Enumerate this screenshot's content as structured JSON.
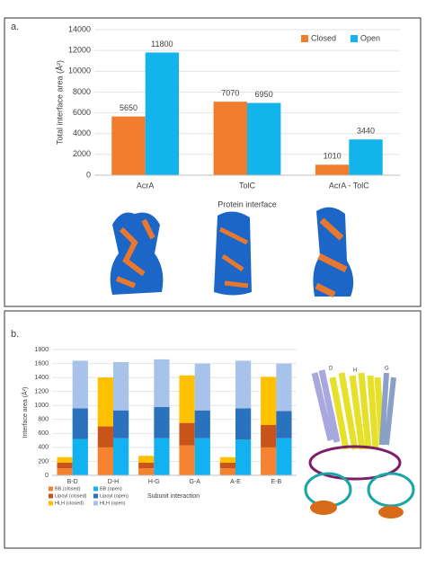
{
  "chart_data": [
    {
      "type": "bar",
      "panel_label": "a.",
      "y_label": "Total interface area (Å²)",
      "x_label": "Protein interface",
      "categories": [
        "AcrA",
        "TolC",
        "AcrA - TolC"
      ],
      "series": [
        {
          "name": "Closed",
          "color": "#f07d2e",
          "values": [
            5650,
            7070,
            1010
          ]
        },
        {
          "name": "Open",
          "color": "#13b4ec",
          "values": [
            11800,
            6950,
            3440
          ]
        }
      ],
      "ylim": [
        0,
        14000
      ],
      "yticks": [
        0,
        2000,
        4000,
        6000,
        8000,
        10000,
        12000,
        14000
      ],
      "legend": "top-right"
    },
    {
      "type": "stacked_bar",
      "panel_label": "b.",
      "y_label": "Interface area (Å²)",
      "x_label": "Subunit interaction",
      "categories": [
        "B-D",
        "D-H",
        "H-G",
        "G-A",
        "A-E",
        "E-B"
      ],
      "series": [
        {
          "name": "BB (closed)",
          "stack": "closed",
          "color": "#f4822f",
          "values": [
            100,
            400,
            100,
            430,
            100,
            400
          ]
        },
        {
          "name": "Lipoyl (closed)",
          "stack": "closed",
          "color": "#c8541a",
          "values": [
            80,
            300,
            80,
            320,
            80,
            320
          ]
        },
        {
          "name": "HLH (closed)",
          "stack": "closed",
          "color": "#ffc000",
          "values": [
            80,
            700,
            100,
            680,
            80,
            690
          ]
        },
        {
          "name": "BB (open)",
          "stack": "open",
          "color": "#12b2f0",
          "values": [
            520,
            530,
            530,
            530,
            510,
            530
          ]
        },
        {
          "name": "Lipoyl (open)",
          "stack": "open",
          "color": "#2a72be",
          "values": [
            440,
            400,
            450,
            400,
            450,
            390
          ]
        },
        {
          "name": "HLH (open)",
          "stack": "open",
          "color": "#a8c3ea",
          "values": [
            680,
            690,
            680,
            670,
            680,
            680
          ]
        }
      ],
      "ylim": [
        0,
        1800
      ],
      "yticks": [
        0,
        200,
        400,
        600,
        800,
        1000,
        1200,
        1400,
        1600,
        1800
      ],
      "legend": "bottom-left",
      "image_labels": [
        "D",
        "H",
        "G"
      ]
    }
  ]
}
